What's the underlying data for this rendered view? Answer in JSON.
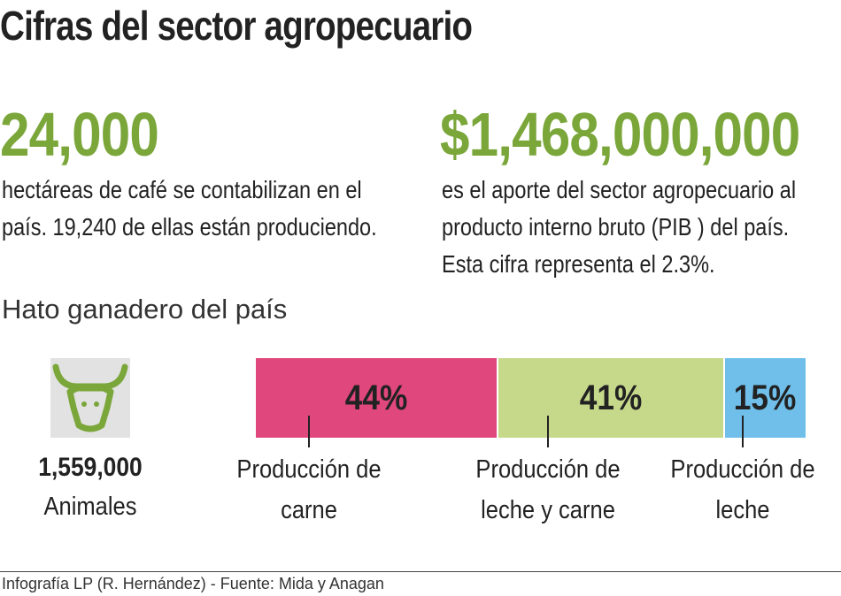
{
  "title": "Cifras del sector agropecuario",
  "stats": [
    {
      "figure": "24,000",
      "lines": [
        "hectáreas de café se contabilizan en el",
        "país. 19,240 de ellas están produciendo."
      ]
    },
    {
      "figure": "$1,468,000,000",
      "lines": [
        "es el aporte del sector agropecuario al",
        "producto interno bruto (PIB ) del país.",
        "Esta cifra representa el 2.3%."
      ]
    }
  ],
  "herd": {
    "figure": "1,559,000",
    "label": "Animales"
  },
  "chart_data": {
    "type": "stacked-bar",
    "title": "Hato ganadero del país",
    "series": [
      {
        "name": "Producción de carne",
        "color": "#e0477c",
        "values": [
          44
        ],
        "value_labels": [
          "44%"
        ]
      },
      {
        "name": "Producción de leche y carne",
        "color": "#c6d98b",
        "values": [
          41
        ],
        "value_labels": [
          "41%"
        ]
      },
      {
        "name": "Producción de leche",
        "color": "#6fbfea",
        "values": [
          15
        ],
        "value_labels": [
          "15%"
        ]
      }
    ]
  },
  "footer": "Infografía LP (R. Hernández) - Fuente: Mida y Anagan"
}
